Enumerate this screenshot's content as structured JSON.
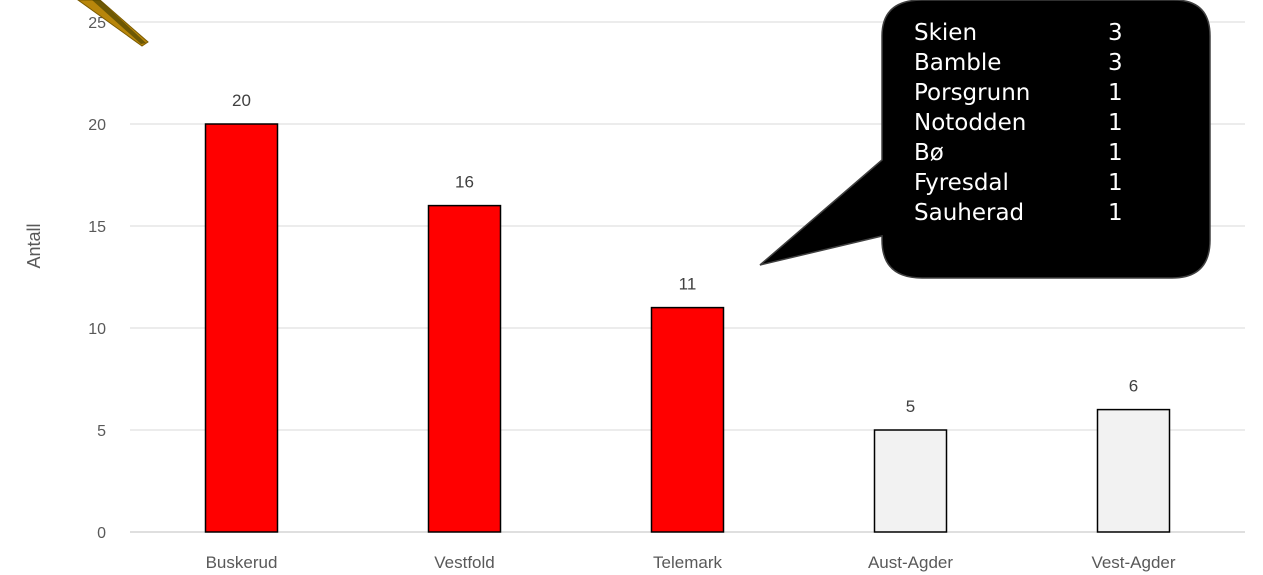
{
  "chart_data": {
    "type": "bar",
    "categories": [
      "Buskerud",
      "Vestfold",
      "Telemark",
      "Aust-Agder",
      "Vest-Agder"
    ],
    "values": [
      20,
      16,
      11,
      5,
      6
    ],
    "highlighted": [
      true,
      true,
      true,
      false,
      false
    ],
    "title": "",
    "xlabel": "",
    "ylabel": "Antall",
    "ylim": [
      0,
      25
    ],
    "yticks": [
      0,
      5,
      10,
      15,
      20,
      25
    ],
    "grid": true,
    "colors": {
      "highlight_bar": "#ff0000",
      "normal_bar": "#f2f2f2",
      "bar_border": "#000000",
      "grid": "#d9d9d9",
      "callout_bg": "#000000",
      "callout_text": "#ffffff",
      "arrow": "#b8860b"
    },
    "annotations": [
      {
        "target_category": "Telemark",
        "items": [
          {
            "name": "Skien",
            "value": 3
          },
          {
            "name": "Bamble",
            "value": 3
          },
          {
            "name": "Porsgrunn",
            "value": 1
          },
          {
            "name": "Notodden",
            "value": 1
          },
          {
            "name": "Bø",
            "value": 1
          },
          {
            "name": "Fyresdal",
            "value": 1
          },
          {
            "name": "Sauherad",
            "value": 1
          }
        ]
      }
    ]
  }
}
